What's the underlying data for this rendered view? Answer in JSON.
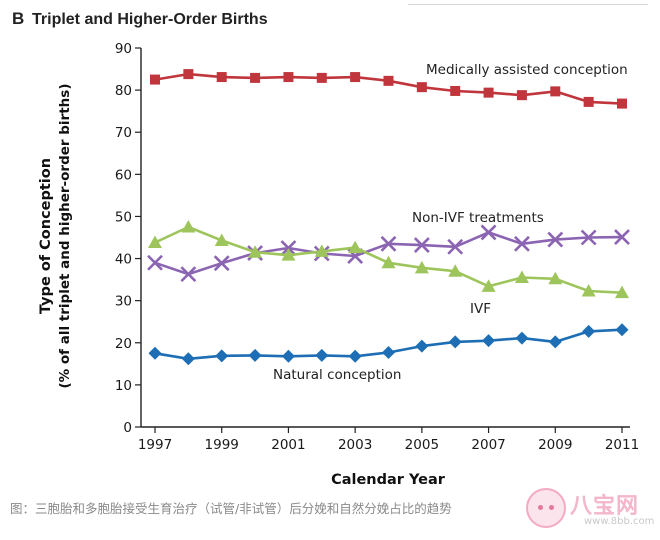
{
  "panel": {
    "letter": "B",
    "title": "Triplet and Higher-Order Births"
  },
  "caption": "图：三胞胎和多胞胎接受生育治疗（试管/非试管）后分娩和自然分娩占比的趋势",
  "watermark": {
    "brand": "八宝网",
    "url": "www.8bb.com"
  },
  "chart_data": {
    "type": "line",
    "title": "Triplet and Higher-Order Births",
    "xlabel": "Calendar Year",
    "ylabel": "Type of Conception",
    "ylabel_sub": "(% of all triplet and higher-order births)",
    "x": [
      1997,
      1998,
      1999,
      2000,
      2001,
      2002,
      2003,
      2004,
      2005,
      2006,
      2007,
      2008,
      2009,
      2010,
      2011
    ],
    "xlim": [
      1997,
      2011
    ],
    "ylim": [
      0,
      90
    ],
    "x_ticks": [
      "1997",
      "1999",
      "2001",
      "2003",
      "2005",
      "2007",
      "2009",
      "2011"
    ],
    "y_ticks": [
      "0",
      "10",
      "20",
      "30",
      "40",
      "50",
      "60",
      "70",
      "80",
      "90"
    ],
    "legend": "inline labels",
    "series": [
      {
        "name": "Medically assisted conception",
        "key": "medically-assisted",
        "color": "#c0363c",
        "marker": "square",
        "values": [
          82.5,
          83.8,
          83.1,
          82.9,
          83.1,
          82.9,
          83.1,
          82.2,
          80.7,
          79.8,
          79.4,
          78.8,
          79.7,
          77.2,
          76.8
        ]
      },
      {
        "name": "Non-IVF treatments",
        "key": "non-ivf",
        "color": "#8b64b2",
        "marker": "x",
        "values": [
          39.0,
          36.3,
          38.9,
          41.3,
          42.5,
          41.2,
          40.6,
          43.5,
          43.2,
          42.8,
          46.2,
          43.5,
          44.5,
          45.0,
          45.1
        ]
      },
      {
        "name": "IVF",
        "key": "ivf",
        "color": "#9ec55b",
        "marker": "triangle",
        "values": [
          43.8,
          47.5,
          44.3,
          41.5,
          40.8,
          41.7,
          42.6,
          39.0,
          37.8,
          37.0,
          33.4,
          35.5,
          35.2,
          32.3,
          31.9
        ]
      },
      {
        "name": "Natural conception",
        "key": "natural",
        "color": "#1d6eb4",
        "marker": "diamond",
        "values": [
          17.5,
          16.2,
          16.9,
          17.0,
          16.8,
          17.0,
          16.8,
          17.7,
          19.2,
          20.2,
          20.5,
          21.1,
          20.2,
          22.7,
          23.1
        ]
      }
    ]
  }
}
